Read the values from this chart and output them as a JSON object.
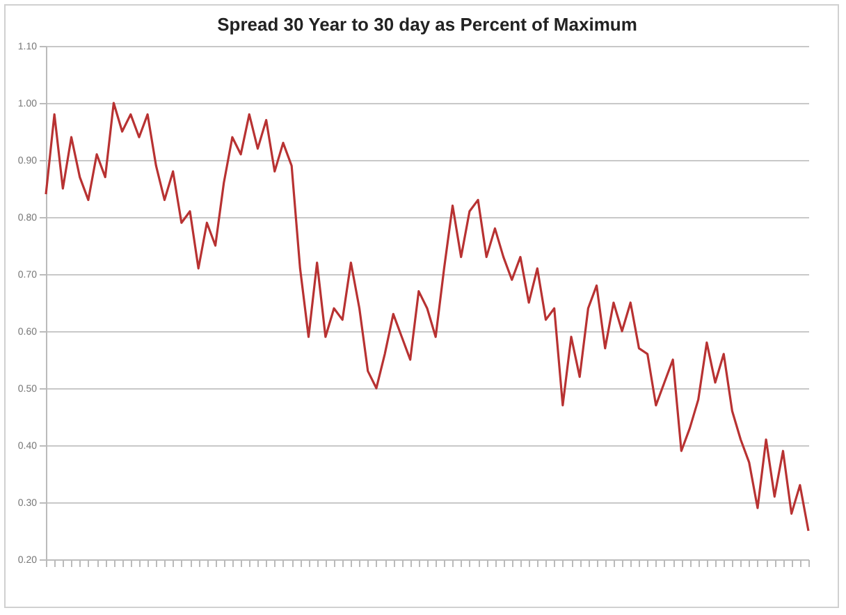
{
  "chart_data": {
    "type": "line",
    "title": "Spread 30 Year to 30 day as Percent of Maximum",
    "categories": [
      null,
      null,
      null,
      null,
      null,
      null,
      null,
      null,
      null,
      null,
      null,
      null,
      null,
      null,
      null,
      null,
      null,
      null,
      null,
      null,
      null,
      null,
      null,
      null,
      null,
      null,
      null,
      null,
      null,
      null,
      null,
      null,
      null,
      null,
      null,
      null,
      null,
      null,
      null,
      null,
      null,
      null,
      null,
      null,
      null,
      null,
      null,
      null,
      null,
      null,
      null,
      null,
      null,
      null,
      null,
      null,
      null,
      null,
      null,
      null,
      null,
      null,
      null,
      null,
      null,
      null,
      null,
      null,
      null,
      null,
      null,
      null,
      null,
      null,
      null,
      null,
      null,
      null,
      null,
      null,
      null,
      null,
      null,
      null,
      null,
      null,
      null,
      null,
      null,
      null,
      null
    ],
    "series": [
      {
        "color": "#b83232",
        "values": [
          0.84,
          0.98,
          0.85,
          0.94,
          0.87,
          0.83,
          0.91,
          0.87,
          1.0,
          0.95,
          0.98,
          0.94,
          0.98,
          0.89,
          0.83,
          0.88,
          0.79,
          0.81,
          0.71,
          0.79,
          0.75,
          0.86,
          0.94,
          0.91,
          0.98,
          0.92,
          0.97,
          0.88,
          0.93,
          0.89,
          0.71,
          0.59,
          0.72,
          0.59,
          0.64,
          0.62,
          0.72,
          0.64,
          0.53,
          0.5,
          0.56,
          0.63,
          0.59,
          0.55,
          0.67,
          0.64,
          0.59,
          0.71,
          0.82,
          0.73,
          0.81,
          0.83,
          0.73,
          0.78,
          0.73,
          0.69,
          0.73,
          0.65,
          0.71,
          0.62,
          0.64,
          0.47,
          0.59,
          0.52,
          0.64,
          0.68,
          0.57,
          0.65,
          0.6,
          0.65,
          0.57,
          0.56,
          0.47,
          0.51,
          0.55,
          0.39,
          0.43,
          0.48,
          0.58,
          0.51,
          0.56,
          0.46,
          0.41,
          0.37,
          0.29,
          0.41,
          0.31,
          0.39,
          0.28,
          0.33,
          0.25
        ]
      }
    ],
    "ylim": [
      0.2,
      1.1
    ],
    "yticks": [
      {
        "value": 0.2,
        "label": "0.20"
      },
      {
        "value": 0.3,
        "label": "0.30"
      },
      {
        "value": 0.4,
        "label": "0.40"
      },
      {
        "value": 0.5,
        "label": "0.50"
      },
      {
        "value": 0.6,
        "label": "0.60"
      },
      {
        "value": 0.7,
        "label": "0.70"
      },
      {
        "value": 0.8,
        "label": "0.80"
      },
      {
        "value": 0.9,
        "label": "0.90"
      },
      {
        "value": 1.0,
        "label": "1.00"
      },
      {
        "value": 1.1,
        "label": "1.10"
      }
    ],
    "grid": "y",
    "marker": "none",
    "line_style": "solid",
    "tick_labels": "y"
  }
}
